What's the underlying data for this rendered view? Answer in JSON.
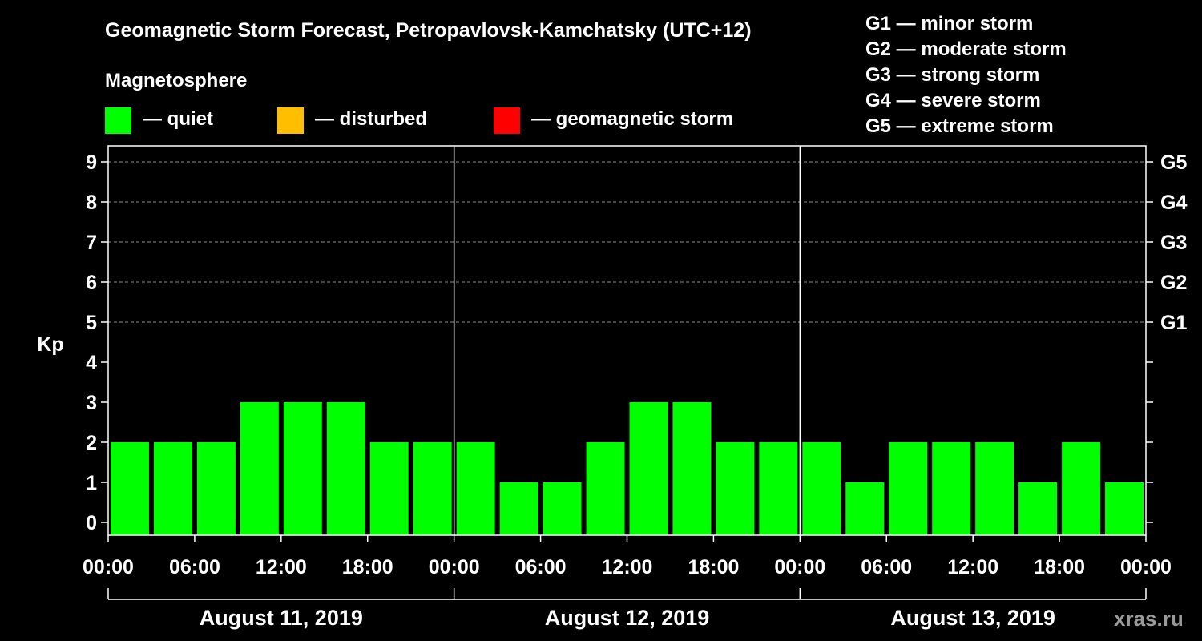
{
  "title": "Geomagnetic Storm Forecast, Petropavlovsk-Kamchatsky (UTC+12)",
  "legend": {
    "title": "Magnetosphere",
    "items": [
      {
        "label": "— quiet",
        "color": "#00ff00"
      },
      {
        "label": "— disturbed",
        "color": "#ffbf00"
      },
      {
        "label": "— geomagnetic storm",
        "color": "#ff0000"
      }
    ]
  },
  "storm_levels": [
    "G1 — minor storm",
    "G2 — moderate storm",
    "G3 — strong storm",
    "G4 — severe storm",
    "G5 — extreme storm"
  ],
  "watermark": "xras.ru",
  "chart_data": {
    "type": "bar",
    "ylabel": "Kp",
    "ylim": [
      0,
      9
    ],
    "yticks": [
      "0",
      "1",
      "2",
      "3",
      "4",
      "5",
      "6",
      "7",
      "8",
      "9"
    ],
    "right_axis_labels": [
      {
        "kp": 5,
        "label": "G1"
      },
      {
        "kp": 6,
        "label": "G2"
      },
      {
        "kp": 7,
        "label": "G3"
      },
      {
        "kp": 8,
        "label": "G4"
      },
      {
        "kp": 9,
        "label": "G5"
      }
    ],
    "grid": "horizontal dashed at Kp 5-9",
    "bar_color": "#00ff00",
    "x_tick_labels": [
      "00:00",
      "06:00",
      "12:00",
      "18:00",
      "00:00",
      "06:00",
      "12:00",
      "18:00",
      "00:00",
      "06:00",
      "12:00",
      "18:00",
      "00:00"
    ],
    "days": [
      {
        "label": "August 11, 2019",
        "values": [
          2,
          2,
          2,
          3,
          3,
          3,
          2,
          2
        ]
      },
      {
        "label": "August 12, 2019",
        "values": [
          2,
          1,
          1,
          2,
          3,
          3,
          2,
          2
        ]
      },
      {
        "label": "August 13, 2019",
        "values": [
          2,
          1,
          2,
          2,
          2,
          1,
          2,
          1
        ]
      }
    ]
  }
}
